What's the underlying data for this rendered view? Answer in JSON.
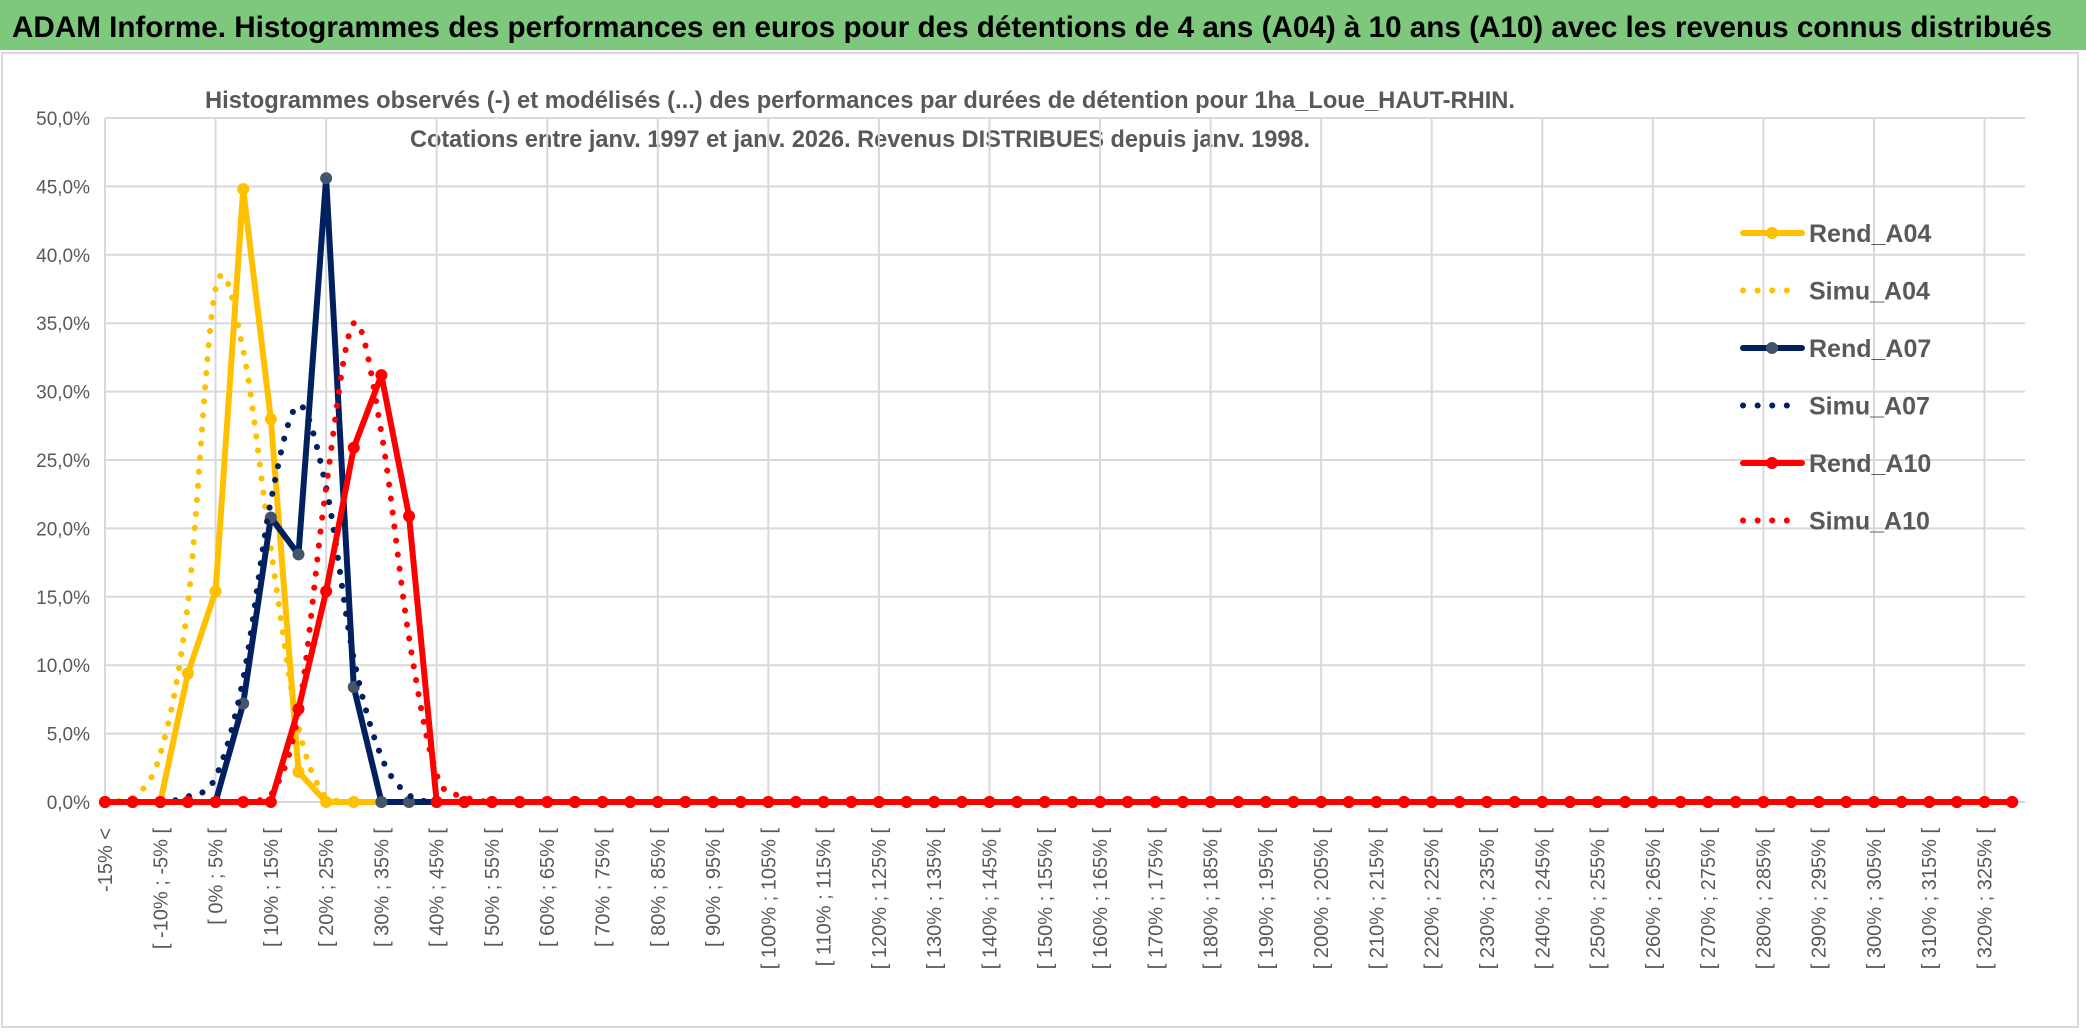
{
  "header": {
    "title": "ADAM Informe. Histogrammes des performances en euros pour des détentions de 4 ans (A04) à 10 ans (A10) avec les revenus connus distribués",
    "background": "#7DC87D"
  },
  "chart_data": {
    "type": "line",
    "title_line1": "Histogrammes observés (-) et modélisés (...) des performances par durées de détention pour 1ha_Loue_HAUT-RHIN.",
    "title_line2": "Cotations entre janv. 1997 et janv. 2026. Revenus DISTRIBUES depuis janv. 1998.",
    "xlabel": "",
    "ylabel": "",
    "ylim": [
      0,
      50
    ],
    "y_ticks": [
      "0,0%",
      "5,0%",
      "10,0%",
      "15,0%",
      "20,0%",
      "25,0%",
      "30,0%",
      "35,0%",
      "40,0%",
      "45,0%",
      "50,0%"
    ],
    "x_tick_labels": [
      "-15% <",
      "[ -10% ; -5% [",
      "[ 0% ; 5% [",
      "[ 10% ; 15% [",
      "[ 20% ; 25% [",
      "[ 30% ; 35% [",
      "[ 40% ; 45% [",
      "[ 50% ; 55% [",
      "[ 60% ; 65% [",
      "[ 70% ; 75% [",
      "[ 80% ; 85% [",
      "[ 90% ; 95% [",
      "[ 100% ; 105% [",
      "[ 110% ; 115% [",
      "[ 120% ; 125% [",
      "[ 130% ; 135% [",
      "[ 140% ; 145% [",
      "[ 150% ; 155% [",
      "[ 160% ; 165% [",
      "[ 170% ; 175% [",
      "[ 180% ; 185% [",
      "[ 190% ; 195% [",
      "[ 200% ; 205% [",
      "[ 210% ; 215% [",
      "[ 220% ; 225% [",
      "[ 230% ; 235% [",
      "[ 240% ; 245% [",
      "[ 250% ; 255% [",
      "[ 260% ; 265% [",
      "[ 270% ; 275% [",
      "[ 280% ; 285% [",
      "[ 290% ; 295% [",
      "[ 300% ; 305% [",
      "[ 310% ; 315% [",
      "[ 320% ; 325% ["
    ],
    "grid": true,
    "legend_position": "right",
    "series": [
      {
        "name": "Rend_A04",
        "color": "#FFC000",
        "marker_color": "#FFC000",
        "style": "solid",
        "values": [
          0,
          0,
          0,
          9.4,
          15.4,
          44.8,
          28.0,
          2.2,
          0,
          0,
          0,
          0,
          0,
          0,
          0,
          0,
          0,
          0,
          0,
          0,
          0,
          0,
          0,
          0,
          0,
          0,
          0,
          0,
          0,
          0,
          0,
          0,
          0,
          0,
          0,
          0,
          0,
          0,
          0,
          0,
          0,
          0,
          0,
          0,
          0,
          0,
          0,
          0,
          0,
          0,
          0,
          0,
          0,
          0,
          0,
          0,
          0,
          0,
          0,
          0,
          0,
          0,
          0,
          0,
          0,
          0,
          0,
          0,
          0,
          0
        ]
      },
      {
        "name": "Simu_A04",
        "color": "#FFC000",
        "style": "dotted",
        "values": [
          0,
          0.3,
          3.5,
          14.5,
          37.5,
          33.0,
          18.5,
          5.5,
          0.3,
          0,
          0,
          0,
          0,
          0,
          0,
          0,
          0,
          0,
          0,
          0,
          0,
          0,
          0,
          0,
          0,
          0,
          0,
          0,
          0,
          0,
          0,
          0,
          0,
          0,
          0,
          0,
          0,
          0,
          0,
          0,
          0,
          0,
          0,
          0,
          0,
          0,
          0,
          0,
          0,
          0,
          0,
          0,
          0,
          0,
          0,
          0,
          0,
          0,
          0,
          0,
          0,
          0,
          0,
          0,
          0,
          0,
          0,
          0,
          0,
          0
        ]
      },
      {
        "name": "Rend_A07",
        "color": "#002060",
        "marker_color": "#44546A",
        "style": "solid",
        "values": [
          0,
          0,
          0,
          0,
          0,
          7.2,
          20.8,
          18.1,
          45.6,
          8.4,
          0,
          0,
          0,
          0,
          0,
          0,
          0,
          0,
          0,
          0,
          0,
          0,
          0,
          0,
          0,
          0,
          0,
          0,
          0,
          0,
          0,
          0,
          0,
          0,
          0,
          0,
          0,
          0,
          0,
          0,
          0,
          0,
          0,
          0,
          0,
          0,
          0,
          0,
          0,
          0,
          0,
          0,
          0,
          0,
          0,
          0,
          0,
          0,
          0,
          0,
          0,
          0,
          0,
          0,
          0,
          0,
          0,
          0,
          0,
          0
        ]
      },
      {
        "name": "Simu_A07",
        "color": "#002060",
        "style": "dotted",
        "values": [
          0,
          0,
          0,
          0.4,
          1.8,
          9.0,
          22.0,
          29.0,
          23.0,
          10.5,
          3.3,
          0.5,
          0,
          0,
          0,
          0,
          0,
          0,
          0,
          0,
          0,
          0,
          0,
          0,
          0,
          0,
          0,
          0,
          0,
          0,
          0,
          0,
          0,
          0,
          0,
          0,
          0,
          0,
          0,
          0,
          0,
          0,
          0,
          0,
          0,
          0,
          0,
          0,
          0,
          0,
          0,
          0,
          0,
          0,
          0,
          0,
          0,
          0,
          0,
          0,
          0,
          0,
          0,
          0,
          0,
          0,
          0,
          0,
          0,
          0
        ]
      },
      {
        "name": "Rend_A10",
        "color": "#FF0000",
        "marker_color": "#FF0000",
        "style": "solid",
        "values": [
          0,
          0,
          0,
          0,
          0,
          0,
          0,
          6.8,
          15.4,
          25.9,
          31.2,
          20.9,
          0,
          0,
          0,
          0,
          0,
          0,
          0,
          0,
          0,
          0,
          0,
          0,
          0,
          0,
          0,
          0,
          0,
          0,
          0,
          0,
          0,
          0,
          0,
          0,
          0,
          0,
          0,
          0,
          0,
          0,
          0,
          0,
          0,
          0,
          0,
          0,
          0,
          0,
          0,
          0,
          0,
          0,
          0,
          0,
          0,
          0,
          0,
          0,
          0,
          0,
          0,
          0,
          0,
          0,
          0,
          0,
          0,
          0
        ]
      },
      {
        "name": "Simu_A10",
        "color": "#FF0000",
        "style": "dotted",
        "values": [
          0,
          0,
          0,
          0,
          0,
          0,
          0.5,
          6.5,
          23.0,
          35.0,
          27.0,
          12.0,
          2.0,
          0.4,
          0,
          0,
          0,
          0,
          0,
          0,
          0,
          0,
          0,
          0,
          0,
          0,
          0,
          0,
          0,
          0,
          0,
          0,
          0,
          0,
          0,
          0,
          0,
          0,
          0,
          0,
          0,
          0,
          0,
          0,
          0,
          0,
          0,
          0,
          0,
          0,
          0,
          0,
          0,
          0,
          0,
          0,
          0,
          0,
          0,
          0,
          0,
          0,
          0,
          0,
          0,
          0,
          0,
          0,
          0,
          0
        ]
      }
    ]
  }
}
